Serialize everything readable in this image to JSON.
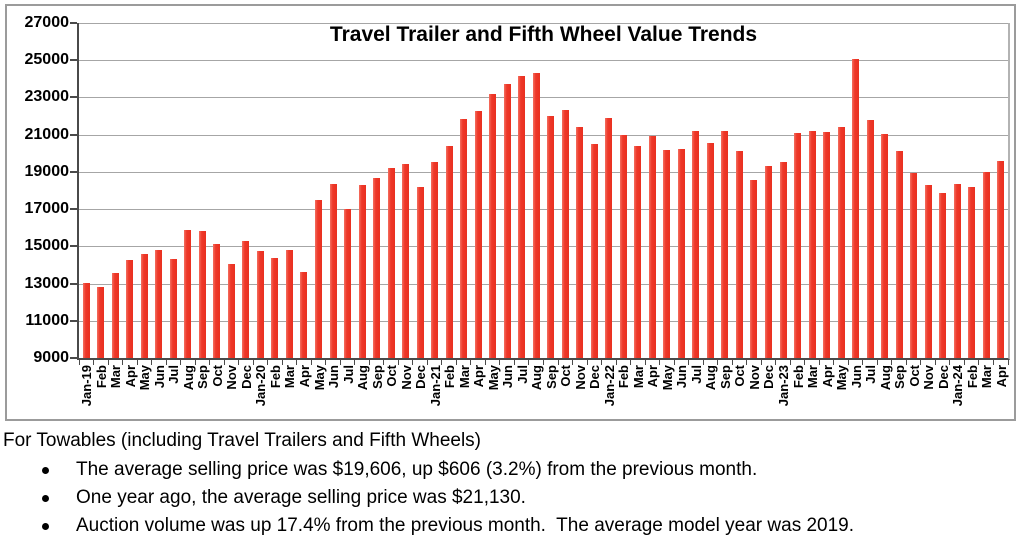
{
  "chart_data": {
    "type": "bar",
    "title": "Travel Trailer and Fifth Wheel Value Trends",
    "xlabel": "",
    "ylabel": "",
    "ylim": [
      9000,
      27000
    ],
    "yticks": [
      9000,
      11000,
      13000,
      15000,
      17000,
      19000,
      21000,
      23000,
      25000,
      27000
    ],
    "grid": true,
    "legend": false,
    "bar_color": "#ED3A2D",
    "gridline_color": "#A6A6A6",
    "axis_color": "#4A4A4A",
    "categories": [
      "Jan-19",
      "Feb",
      "Mar",
      "Apr",
      "May",
      "Jun",
      "Jul",
      "Aug",
      "Sep",
      "Oct",
      "Nov",
      "Dec",
      "Jan-20",
      "Feb",
      "Mar",
      "Apr",
      "May",
      "Jun",
      "Jul",
      "Aug",
      "Sep",
      "Oct",
      "Nov",
      "Dec",
      "Jan-21",
      "Feb",
      "Mar",
      "Apr",
      "May",
      "Jun",
      "Jul",
      "Aug",
      "Sep",
      "Oct",
      "Nov",
      "Dec",
      "Jan-22",
      "Feb",
      "Mar",
      "Apr",
      "May",
      "Jun",
      "Jul",
      "Aug",
      "Sep",
      "Oct",
      "Nov",
      "Dec",
      "Jan-23",
      "Feb",
      "Mar",
      "Apr",
      "May",
      "Jun",
      "Jul",
      "Aug",
      "Sep",
      "Oct",
      "Nov",
      "Dec",
      "Jan-24",
      "Feb",
      "Mar",
      "Apr"
    ],
    "values": [
      13050,
      12800,
      13550,
      14250,
      14600,
      14800,
      14300,
      15900,
      15850,
      15150,
      14050,
      15300,
      14750,
      14400,
      14800,
      13600,
      17500,
      18350,
      17000,
      18300,
      18650,
      19200,
      19400,
      18200,
      19550,
      20400,
      21850,
      22250,
      23200,
      23700,
      24150,
      24300,
      22000,
      22300,
      21400,
      20500,
      21900,
      21000,
      20400,
      20950,
      20200,
      20250,
      21200,
      20550,
      21200,
      20150,
      18550,
      19300,
      19550,
      21100,
      21200,
      21130,
      21400,
      25050,
      21800,
      21050,
      20150,
      18950,
      18300,
      17850,
      18350,
      18200,
      19000,
      19606
    ]
  },
  "footer": {
    "heading": "For Towables (including Travel Trailers and Fifth Wheels)",
    "bullets": [
      "The average selling price was $19,606, up $606 (3.2%) from the previous month.",
      "One year ago, the average selling price was $21,130.",
      "Auction volume was up 17.4% from the previous month.  The average model year was 2019."
    ]
  }
}
